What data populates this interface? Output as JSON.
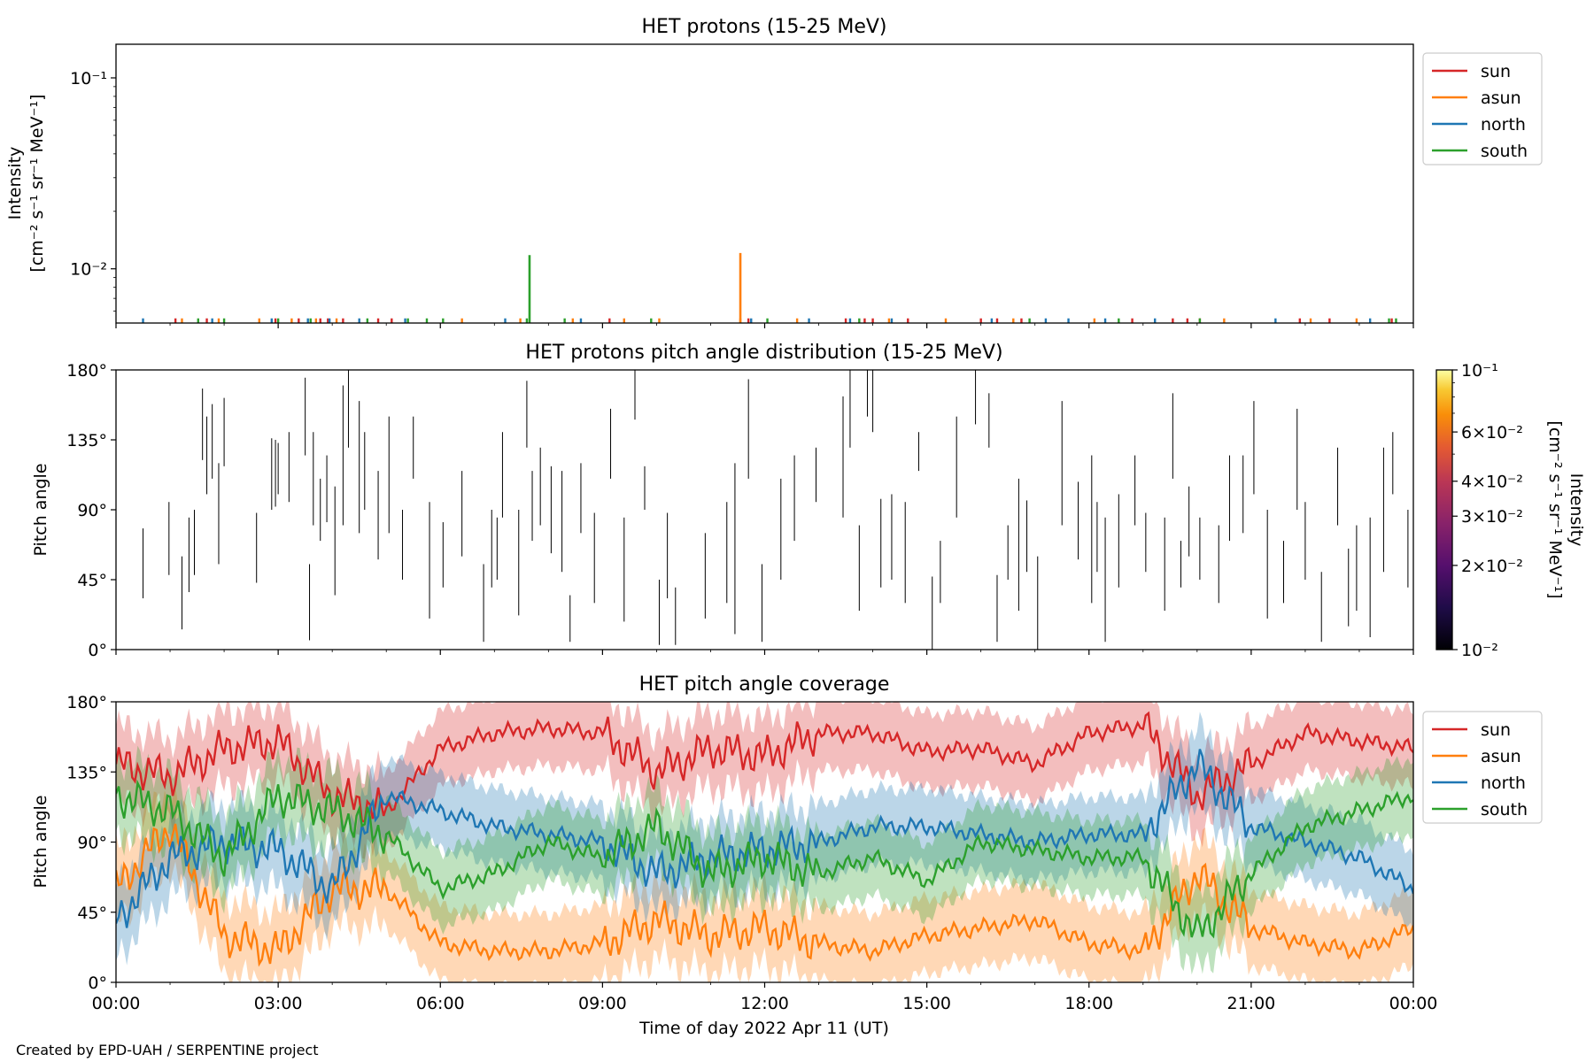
{
  "colors": {
    "sun": "#d62728",
    "asun": "#ff7f0e",
    "north": "#1f77b4",
    "south": "#2ca02c"
  },
  "footer": "Created by EPD-UAH / SERPENTINE project",
  "xaxis": {
    "label": "Time of day 2022 Apr 11 (UT)",
    "ticks": [
      "00:00",
      "03:00",
      "06:00",
      "09:00",
      "12:00",
      "15:00",
      "18:00",
      "21:00",
      "00:00"
    ],
    "range_hours": [
      0,
      24
    ]
  },
  "legend_entries": [
    "sun",
    "asun",
    "north",
    "south"
  ],
  "chart_data": [
    {
      "type": "line",
      "title": "HET protons (15-25 MeV)",
      "ylabel_line1": "Intensity",
      "ylabel_line2": "[cm⁻² s⁻¹ sr⁻¹ MeV⁻¹]",
      "yscale": "log",
      "ylim": [
        0.0052,
        0.15
      ],
      "yticks": [
        {
          "value": 0.1,
          "label": "10⁻¹"
        },
        {
          "value": 0.01,
          "label": "10⁻²"
        }
      ],
      "legend": "outside-right",
      "baseline": 0.0055,
      "spikes": [
        {
          "series": "sun",
          "x": [
            1.1,
            1.68,
            2.95,
            3.38,
            3.78,
            3.92,
            4.2,
            4.85,
            5.1,
            9.13,
            11.7,
            13.5,
            13.85,
            14.0,
            14.65,
            16.0,
            16.3,
            16.75,
            18.8,
            19.55,
            19.82,
            20.05,
            21.9,
            22.45,
            23.6
          ]
        },
        {
          "series": "asun",
          "x": [
            1.22,
            1.9,
            2.65,
            3.25,
            3.7,
            4.08,
            6.4,
            7.48,
            8.45,
            9.4,
            10.05,
            11.55,
            12.6,
            14.3,
            15.35,
            16.6,
            18.1,
            20.5,
            22.1,
            22.95
          ]
        },
        {
          "series": "north",
          "x": [
            0.5,
            1.78,
            2.88,
            3.55,
            3.95,
            4.5,
            5.35,
            7.2,
            8.6,
            11.75,
            12.82,
            13.58,
            14.35,
            16.2,
            17.2,
            17.62,
            18.3,
            19.22,
            21.45,
            23.2
          ]
        },
        {
          "series": "south",
          "x": [
            1.52,
            2.0,
            3.0,
            3.6,
            4.65,
            5.4,
            5.75,
            6.05,
            7.6,
            8.3,
            9.9,
            12.05,
            13.75,
            16.9,
            18.55,
            20.05,
            23.55,
            23.68
          ]
        }
      ],
      "peaks": [
        {
          "series": "south",
          "x": 7.65,
          "y": 0.0118
        },
        {
          "series": "asun",
          "x": 11.55,
          "y": 0.0121
        }
      ]
    },
    {
      "type": "heatmap",
      "title": "HET protons pitch angle distribution (15-25 MeV)",
      "ylabel": "Pitch angle",
      "ylim": [
        0,
        180
      ],
      "yticks": [
        {
          "value": 0,
          "label": "0°"
        },
        {
          "value": 45,
          "label": "45°"
        },
        {
          "value": 90,
          "label": "90°"
        },
        {
          "value": 135,
          "label": "135°"
        },
        {
          "value": 180,
          "label": "180°"
        }
      ],
      "colorbar": {
        "label_line1": "Intensity",
        "label_line2": "[cm⁻² s⁻¹ sr⁻¹ MeV⁻¹]",
        "scale": "log",
        "range": [
          0.01,
          0.1
        ],
        "ticks": [
          {
            "value": 0.1,
            "label": "10⁻¹"
          },
          {
            "value": 0.06,
            "label": "6×10⁻²"
          },
          {
            "value": 0.04,
            "label": "4×10⁻²"
          },
          {
            "value": 0.03,
            "label": "3×10⁻²"
          },
          {
            "value": 0.02,
            "label": "2×10⁻²"
          },
          {
            "value": 0.01,
            "label": "10⁻²"
          }
        ]
      },
      "segments": [
        [
          0.5,
          33,
          78
        ],
        [
          0.98,
          48,
          95
        ],
        [
          1.22,
          13,
          60
        ],
        [
          1.35,
          37,
          85
        ],
        [
          1.45,
          48,
          90
        ],
        [
          1.6,
          122,
          168
        ],
        [
          1.68,
          100,
          150
        ],
        [
          1.78,
          110,
          158
        ],
        [
          1.9,
          55,
          120
        ],
        [
          2.0,
          118,
          162
        ],
        [
          2.6,
          43,
          88
        ],
        [
          2.88,
          90,
          136
        ],
        [
          2.95,
          92,
          135
        ],
        [
          3.0,
          100,
          133
        ],
        [
          3.2,
          95,
          140
        ],
        [
          3.5,
          125,
          175
        ],
        [
          3.58,
          6,
          55
        ],
        [
          3.65,
          80,
          140
        ],
        [
          3.78,
          70,
          110
        ],
        [
          3.9,
          82,
          125
        ],
        [
          4.05,
          35,
          105
        ],
        [
          4.2,
          80,
          170
        ],
        [
          4.3,
          130,
          180
        ],
        [
          4.5,
          75,
          160
        ],
        [
          4.6,
          90,
          140
        ],
        [
          4.85,
          58,
          115
        ],
        [
          5.05,
          75,
          150
        ],
        [
          5.3,
          45,
          90
        ],
        [
          5.5,
          110,
          150
        ],
        [
          5.8,
          20,
          95
        ],
        [
          6.05,
          40,
          82
        ],
        [
          6.4,
          60,
          115
        ],
        [
          6.8,
          5,
          55
        ],
        [
          6.95,
          40,
          90
        ],
        [
          7.05,
          45,
          85
        ],
        [
          7.15,
          85,
          140
        ],
        [
          7.45,
          22,
          90
        ],
        [
          7.6,
          130,
          173
        ],
        [
          7.7,
          70,
          115
        ],
        [
          7.85,
          80,
          130
        ],
        [
          8.05,
          62,
          118
        ],
        [
          8.25,
          50,
          115
        ],
        [
          8.4,
          5,
          35
        ],
        [
          8.6,
          75,
          120
        ],
        [
          8.85,
          30,
          88
        ],
        [
          9.15,
          110,
          155
        ],
        [
          9.4,
          18,
          85
        ],
        [
          9.6,
          148,
          180
        ],
        [
          9.78,
          90,
          118
        ],
        [
          10.05,
          3,
          45
        ],
        [
          10.2,
          33,
          88
        ],
        [
          10.35,
          3,
          40
        ],
        [
          10.9,
          20,
          75
        ],
        [
          11.3,
          30,
          95
        ],
        [
          11.45,
          10,
          120
        ],
        [
          11.7,
          110,
          174
        ],
        [
          11.95,
          5,
          55
        ],
        [
          12.3,
          45,
          110
        ],
        [
          12.55,
          70,
          125
        ],
        [
          12.95,
          95,
          130
        ],
        [
          13.45,
          85,
          163
        ],
        [
          13.58,
          130,
          180
        ],
        [
          13.75,
          25,
          80
        ],
        [
          13.9,
          150,
          180
        ],
        [
          14.0,
          140,
          180
        ],
        [
          14.15,
          40,
          97
        ],
        [
          14.35,
          45,
          100
        ],
        [
          14.6,
          30,
          95
        ],
        [
          14.85,
          115,
          140
        ],
        [
          15.1,
          0,
          47
        ],
        [
          15.25,
          30,
          70
        ],
        [
          15.55,
          85,
          150
        ],
        [
          15.9,
          145,
          180
        ],
        [
          16.15,
          130,
          165
        ],
        [
          16.3,
          5,
          48
        ],
        [
          16.5,
          45,
          80
        ],
        [
          16.7,
          25,
          110
        ],
        [
          16.85,
          50,
          96
        ],
        [
          17.05,
          0,
          60
        ],
        [
          17.5,
          80,
          160
        ],
        [
          17.8,
          58,
          108
        ],
        [
          18.05,
          30,
          125
        ],
        [
          18.15,
          50,
          95
        ],
        [
          18.3,
          5,
          85
        ],
        [
          18.55,
          40,
          100
        ],
        [
          18.85,
          80,
          125
        ],
        [
          19.05,
          50,
          88
        ],
        [
          19.4,
          25,
          85
        ],
        [
          19.55,
          110,
          165
        ],
        [
          19.7,
          40,
          70
        ],
        [
          19.85,
          60,
          105
        ],
        [
          20.05,
          45,
          85
        ],
        [
          20.4,
          30,
          80
        ],
        [
          20.6,
          70,
          125
        ],
        [
          20.85,
          75,
          125
        ],
        [
          21.05,
          100,
          160
        ],
        [
          21.3,
          20,
          90
        ],
        [
          21.6,
          30,
          70
        ],
        [
          21.85,
          90,
          155
        ],
        [
          22.0,
          45,
          95
        ],
        [
          22.3,
          5,
          50
        ],
        [
          22.6,
          80,
          130
        ],
        [
          22.8,
          15,
          65
        ],
        [
          22.95,
          25,
          80
        ],
        [
          23.2,
          8,
          85
        ],
        [
          23.45,
          50,
          130
        ],
        [
          23.62,
          100,
          140
        ],
        [
          23.9,
          40,
          90
        ]
      ]
    },
    {
      "type": "area",
      "title": "HET pitch angle coverage",
      "ylabel": "Pitch angle",
      "ylim": [
        0,
        180
      ],
      "yticks": [
        {
          "value": 0,
          "label": "0°"
        },
        {
          "value": 45,
          "label": "45°"
        },
        {
          "value": 90,
          "label": "90°"
        },
        {
          "value": 135,
          "label": "135°"
        },
        {
          "value": 180,
          "label": "180°"
        }
      ],
      "legend": "outside-right",
      "band_halfwidth_deg": 24,
      "x": [
        0,
        1,
        2,
        3,
        4,
        5,
        6,
        7,
        8,
        9,
        10,
        11,
        12,
        13,
        14,
        15,
        16,
        17,
        18,
        19,
        20,
        21,
        22,
        23,
        24
      ],
      "series": [
        {
          "name": "sun",
          "values": [
            140,
            132,
            150,
            155,
            120,
            110,
            150,
            160,
            163,
            160,
            135,
            150,
            145,
            160,
            160,
            148,
            150,
            140,
            160,
            165,
            120,
            140,
            160,
            155,
            150
          ]
        },
        {
          "name": "asun",
          "values": [
            60,
            100,
            30,
            20,
            60,
            60,
            25,
            20,
            20,
            25,
            40,
            30,
            35,
            25,
            20,
            30,
            35,
            40,
            25,
            20,
            70,
            35,
            25,
            20,
            35
          ]
        },
        {
          "name": "north",
          "values": [
            40,
            80,
            90,
            85,
            60,
            120,
            110,
            100,
            95,
            90,
            70,
            80,
            85,
            90,
            100,
            100,
            95,
            90,
            95,
            95,
            140,
            100,
            90,
            80,
            60
          ]
        },
        {
          "name": "south",
          "values": [
            120,
            110,
            80,
            120,
            110,
            95,
            60,
            70,
            90,
            80,
            100,
            70,
            80,
            70,
            80,
            65,
            90,
            85,
            80,
            80,
            30,
            70,
            100,
            110,
            120
          ]
        }
      ]
    }
  ]
}
